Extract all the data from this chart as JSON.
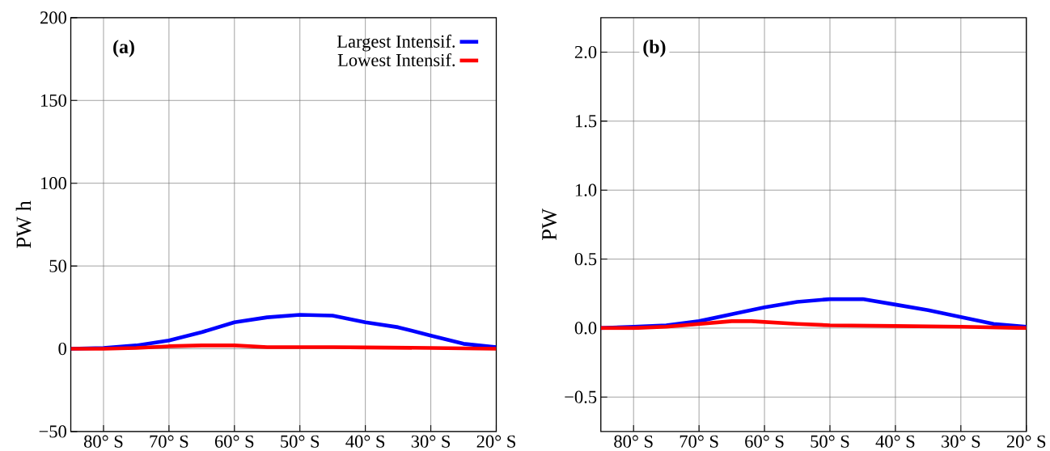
{
  "chart_data": [
    {
      "type": "line",
      "ylabel": "PW h",
      "annotations": [
        "(a)"
      ],
      "legend": "top right",
      "grid": true,
      "marker": "none",
      "line_style": "solid",
      "xlim": [
        -85,
        -20
      ],
      "xticks": [
        {
          "value": -80,
          "label": "80° S"
        },
        {
          "value": -70,
          "label": "70° S"
        },
        {
          "value": -60,
          "label": "60° S"
        },
        {
          "value": -50,
          "label": "50° S"
        },
        {
          "value": -40,
          "label": "40° S"
        },
        {
          "value": -30,
          "label": "30° S"
        },
        {
          "value": -20,
          "label": "20° S"
        }
      ],
      "ylim": [
        -50,
        200
      ],
      "yticks": [
        {
          "value": -50,
          "label": "−50"
        },
        {
          "value": 0,
          "label": "0"
        },
        {
          "value": 50,
          "label": "50"
        },
        {
          "value": 100,
          "label": "100"
        },
        {
          "value": 150,
          "label": "150"
        },
        {
          "value": 200,
          "label": "200"
        }
      ],
      "series": [
        {
          "name": "Largest Intensif.",
          "color": "#0000ff",
          "x": [
            -85,
            -80,
            -75,
            -70,
            -65,
            -60,
            -55,
            -50,
            -45,
            -40,
            -35,
            -30,
            -25,
            -20
          ],
          "values": [
            0,
            0.5,
            2,
            5,
            10,
            16,
            19,
            20.5,
            20,
            16,
            13,
            8,
            3,
            1
          ]
        },
        {
          "name": "Lowest Intensif.",
          "color": "#ff0000",
          "x": [
            -85,
            -80,
            -75,
            -70,
            -65,
            -60,
            -55,
            -50,
            -45,
            -40,
            -30,
            -20
          ],
          "values": [
            0,
            0,
            0.5,
            1.5,
            2,
            2,
            1,
            1,
            1,
            0.8,
            0.5,
            0
          ]
        }
      ]
    },
    {
      "type": "line",
      "ylabel": "PW",
      "annotations": [
        "(b)"
      ],
      "grid": true,
      "marker": "none",
      "line_style": "solid",
      "xlim": [
        -85,
        -20
      ],
      "xticks": [
        {
          "value": -80,
          "label": "80° S"
        },
        {
          "value": -70,
          "label": "70° S"
        },
        {
          "value": -60,
          "label": "60° S"
        },
        {
          "value": -50,
          "label": "50° S"
        },
        {
          "value": -40,
          "label": "40° S"
        },
        {
          "value": -30,
          "label": "30° S"
        },
        {
          "value": -20,
          "label": "20° S"
        }
      ],
      "ylim": [
        -0.75,
        2.25
      ],
      "yticks": [
        {
          "value": -0.5,
          "label": "−0.5"
        },
        {
          "value": 0,
          "label": "0.0"
        },
        {
          "value": 0.5,
          "label": "0.5"
        },
        {
          "value": 1,
          "label": "1.0"
        },
        {
          "value": 1.5,
          "label": "1.5"
        },
        {
          "value": 2,
          "label": "2.0"
        }
      ],
      "series": [
        {
          "color": "#0000ff",
          "x": [
            -85,
            -80,
            -75,
            -70,
            -65,
            -60,
            -55,
            -50,
            -45,
            -40,
            -35,
            -30,
            -25,
            -20
          ],
          "values": [
            0,
            0.01,
            0.02,
            0.05,
            0.1,
            0.15,
            0.19,
            0.21,
            0.21,
            0.17,
            0.13,
            0.08,
            0.03,
            0.01
          ]
        },
        {
          "color": "#ff0000",
          "x": [
            -85,
            -80,
            -75,
            -70,
            -65,
            -62,
            -55,
            -50,
            -40,
            -30,
            -20
          ],
          "values": [
            0,
            0,
            0.01,
            0.03,
            0.05,
            0.05,
            0.03,
            0.02,
            0.015,
            0.01,
            0
          ]
        }
      ]
    }
  ]
}
